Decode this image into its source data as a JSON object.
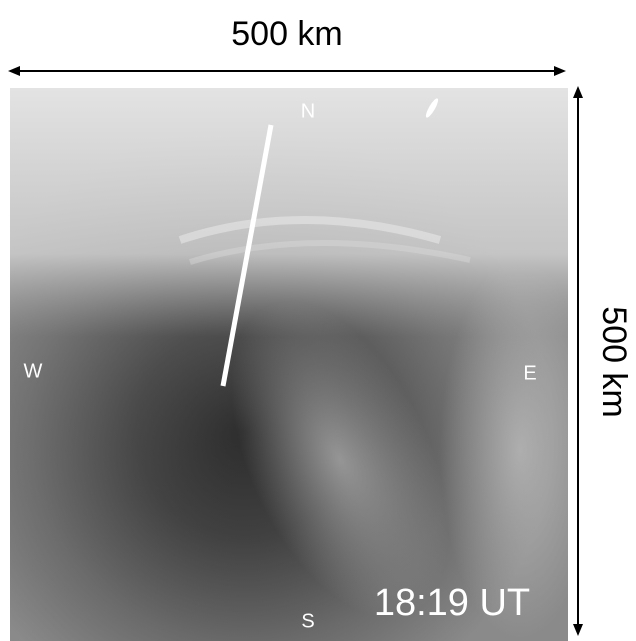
{
  "scale_top": "500 km",
  "scale_right": "500 km",
  "directions": {
    "north": "N",
    "west": "W",
    "east": "E",
    "south": "S"
  },
  "timestamp": "18:19 UT"
}
